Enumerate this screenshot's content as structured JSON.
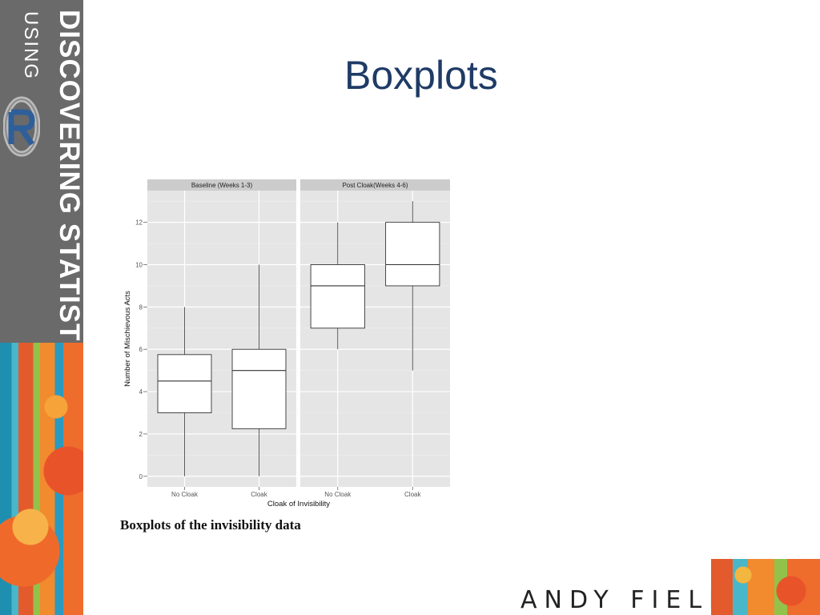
{
  "sidebar": {
    "title_line1": "DISCOVERING STATISTICS",
    "title_line2": "USING",
    "logo": "R-logo"
  },
  "slide": {
    "title": "Boxplots",
    "caption": "Boxplots of the invisibility data",
    "author": "ANDY FIELD"
  },
  "chart_data": {
    "type": "boxplot",
    "facets": [
      {
        "label": "Baseline (Weeks 1-3)",
        "boxes": [
          {
            "category": "No Cloak",
            "min": 0,
            "q1": 3,
            "median": 4.5,
            "q3": 5.75,
            "max": 8
          },
          {
            "category": "Cloak",
            "min": 0,
            "q1": 2.25,
            "median": 5,
            "q3": 6,
            "max": 10
          }
        ]
      },
      {
        "label": "Post Cloak(Weeks 4-6)",
        "boxes": [
          {
            "category": "No Cloak",
            "min": 6,
            "q1": 7,
            "median": 9,
            "q3": 10,
            "max": 12
          },
          {
            "category": "Cloak",
            "min": 5,
            "q1": 9,
            "median": 10,
            "q3": 12,
            "max": 13
          }
        ]
      }
    ],
    "xlabel": "Cloak of Invisibility",
    "ylabel": "Number of Mischievous Acts",
    "ylim": [
      -0.5,
      13.5
    ],
    "yticks": [
      0,
      2,
      4,
      6,
      8,
      10,
      12
    ],
    "colors": {
      "panel": "#e5e5e5",
      "strip": "#cccccc",
      "grid": "#ffffff",
      "box": "#ffffff",
      "line": "#333333"
    }
  }
}
